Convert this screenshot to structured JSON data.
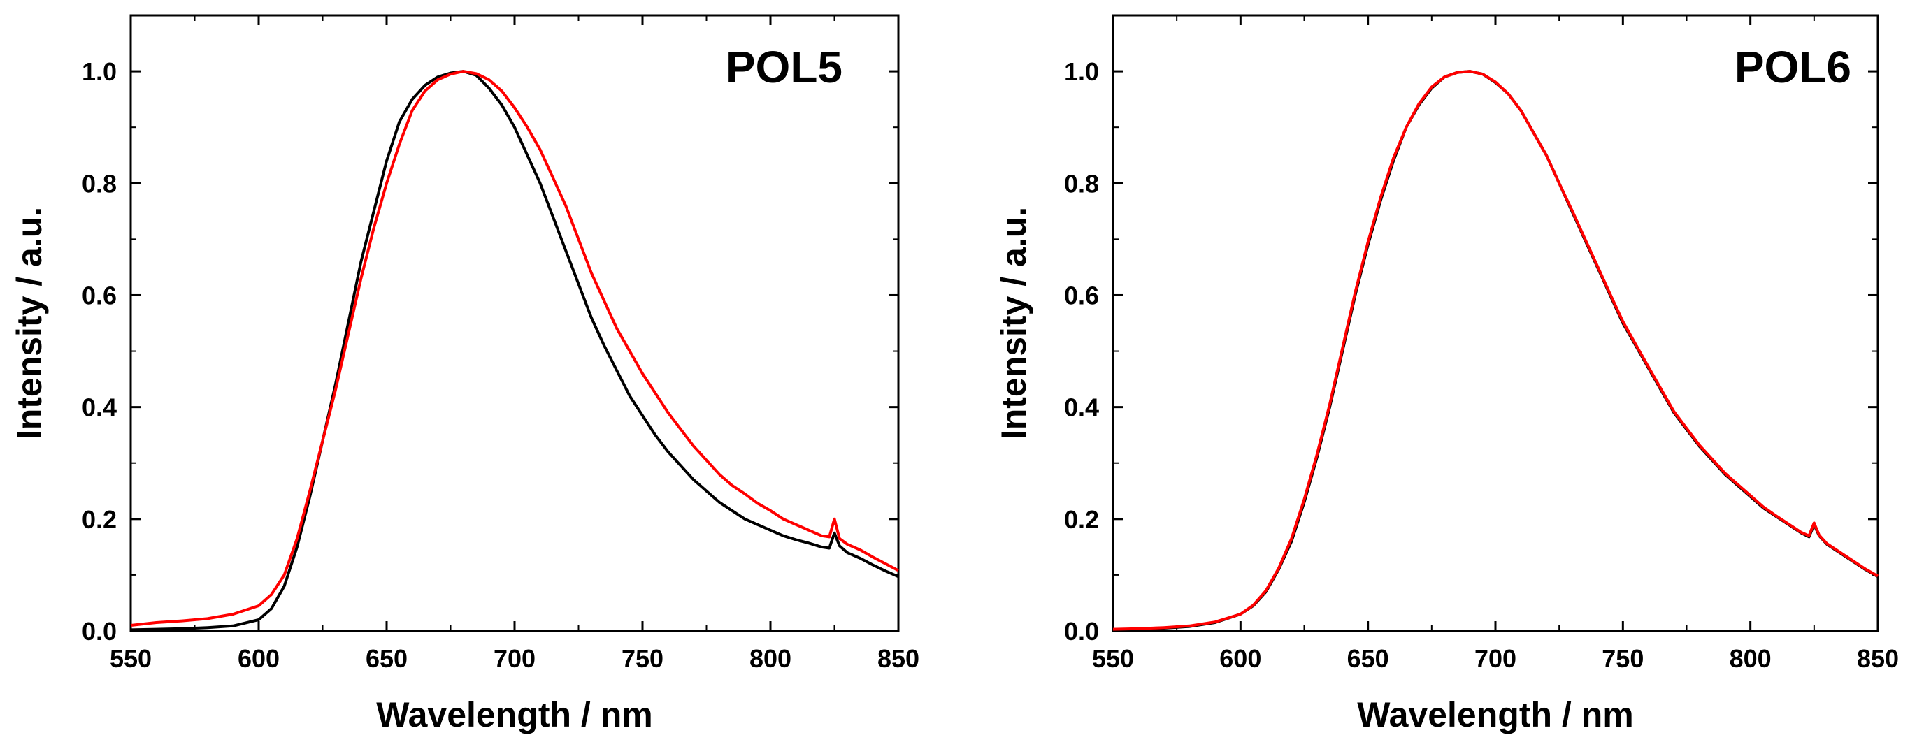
{
  "chart_data": [
    {
      "type": "line",
      "title": "POL5",
      "xlabel": "Wavelength / nm",
      "ylabel": "Intensity / a.u.",
      "xlim": [
        550,
        850
      ],
      "ylim": [
        0,
        1.1
      ],
      "xticks": [
        "550",
        "600",
        "650",
        "700",
        "750",
        "800",
        "850"
      ],
      "yticks": [
        "0.0",
        "0.2",
        "0.4",
        "0.6",
        "0.8",
        "1.0"
      ],
      "grid": false,
      "series": [
        {
          "name": "black",
          "color": "#000000",
          "x": [
            550,
            560,
            570,
            580,
            590,
            600,
            605,
            610,
            615,
            620,
            625,
            630,
            635,
            640,
            645,
            650,
            655,
            660,
            665,
            670,
            675,
            680,
            685,
            690,
            695,
            700,
            705,
            710,
            715,
            720,
            725,
            730,
            735,
            740,
            745,
            750,
            755,
            760,
            765,
            770,
            775,
            780,
            785,
            790,
            795,
            800,
            805,
            810,
            815,
            820,
            823,
            825,
            827,
            830,
            835,
            840,
            845,
            850
          ],
          "y": [
            0.002,
            0.003,
            0.004,
            0.006,
            0.009,
            0.02,
            0.04,
            0.08,
            0.15,
            0.24,
            0.34,
            0.44,
            0.55,
            0.66,
            0.75,
            0.84,
            0.91,
            0.95,
            0.975,
            0.99,
            0.997,
            1.0,
            0.993,
            0.97,
            0.94,
            0.9,
            0.85,
            0.8,
            0.74,
            0.68,
            0.62,
            0.56,
            0.51,
            0.465,
            0.42,
            0.385,
            0.35,
            0.32,
            0.295,
            0.27,
            0.25,
            0.23,
            0.215,
            0.2,
            0.19,
            0.18,
            0.17,
            0.163,
            0.157,
            0.15,
            0.148,
            0.175,
            0.152,
            0.14,
            0.13,
            0.118,
            0.107,
            0.097
          ]
        },
        {
          "name": "red",
          "color": "#ff0000",
          "x": [
            550,
            560,
            570,
            580,
            590,
            600,
            605,
            610,
            615,
            620,
            625,
            630,
            635,
            640,
            645,
            650,
            655,
            660,
            665,
            670,
            675,
            680,
            685,
            690,
            695,
            700,
            705,
            710,
            715,
            720,
            725,
            730,
            735,
            740,
            745,
            750,
            755,
            760,
            765,
            770,
            775,
            780,
            785,
            790,
            795,
            800,
            805,
            810,
            815,
            820,
            823,
            825,
            827,
            830,
            835,
            840,
            845,
            850
          ],
          "y": [
            0.01,
            0.015,
            0.018,
            0.022,
            0.03,
            0.045,
            0.065,
            0.1,
            0.165,
            0.25,
            0.34,
            0.43,
            0.53,
            0.63,
            0.72,
            0.8,
            0.87,
            0.93,
            0.965,
            0.985,
            0.995,
            1.0,
            0.996,
            0.985,
            0.965,
            0.935,
            0.9,
            0.86,
            0.81,
            0.76,
            0.7,
            0.64,
            0.59,
            0.54,
            0.5,
            0.46,
            0.425,
            0.39,
            0.36,
            0.33,
            0.305,
            0.28,
            0.26,
            0.245,
            0.228,
            0.215,
            0.2,
            0.19,
            0.18,
            0.17,
            0.168,
            0.2,
            0.165,
            0.155,
            0.145,
            0.132,
            0.12,
            0.108
          ]
        }
      ]
    },
    {
      "type": "line",
      "title": "POL6",
      "xlabel": "Wavelength / nm",
      "ylabel": "Intensity / a.u.",
      "xlim": [
        550,
        850
      ],
      "ylim": [
        0,
        1.1
      ],
      "xticks": [
        "550",
        "600",
        "650",
        "700",
        "750",
        "800",
        "850"
      ],
      "yticks": [
        "0.0",
        "0.2",
        "0.4",
        "0.6",
        "0.8",
        "1.0"
      ],
      "grid": false,
      "series": [
        {
          "name": "black",
          "color": "#000000",
          "x": [
            550,
            560,
            570,
            580,
            590,
            600,
            605,
            610,
            615,
            620,
            625,
            630,
            635,
            640,
            645,
            650,
            655,
            660,
            665,
            670,
            675,
            680,
            685,
            690,
            695,
            700,
            705,
            710,
            715,
            720,
            725,
            730,
            735,
            740,
            745,
            750,
            755,
            760,
            765,
            770,
            775,
            780,
            785,
            790,
            795,
            800,
            805,
            810,
            815,
            820,
            823,
            825,
            827,
            830,
            835,
            840,
            845,
            850
          ],
          "y": [
            0.002,
            0.003,
            0.005,
            0.008,
            0.015,
            0.03,
            0.045,
            0.07,
            0.11,
            0.16,
            0.23,
            0.31,
            0.4,
            0.5,
            0.6,
            0.69,
            0.77,
            0.84,
            0.9,
            0.94,
            0.97,
            0.99,
            0.998,
            1.0,
            0.995,
            0.98,
            0.96,
            0.93,
            0.89,
            0.85,
            0.8,
            0.75,
            0.7,
            0.65,
            0.6,
            0.55,
            0.51,
            0.47,
            0.43,
            0.39,
            0.36,
            0.33,
            0.305,
            0.28,
            0.26,
            0.24,
            0.22,
            0.205,
            0.19,
            0.175,
            0.168,
            0.19,
            0.17,
            0.155,
            0.14,
            0.125,
            0.11,
            0.097
          ]
        },
        {
          "name": "red",
          "color": "#ff0000",
          "x": [
            550,
            560,
            570,
            580,
            590,
            600,
            605,
            610,
            615,
            620,
            625,
            630,
            635,
            640,
            645,
            650,
            655,
            660,
            665,
            670,
            675,
            680,
            685,
            690,
            695,
            700,
            705,
            710,
            715,
            720,
            725,
            730,
            735,
            740,
            745,
            750,
            755,
            760,
            765,
            770,
            775,
            780,
            785,
            790,
            795,
            800,
            805,
            810,
            815,
            820,
            823,
            825,
            827,
            830,
            835,
            840,
            845,
            850
          ],
          "y": [
            0.003,
            0.004,
            0.006,
            0.009,
            0.016,
            0.03,
            0.046,
            0.072,
            0.112,
            0.165,
            0.235,
            0.315,
            0.405,
            0.505,
            0.605,
            0.695,
            0.775,
            0.845,
            0.9,
            0.942,
            0.972,
            0.99,
            0.998,
            1.0,
            0.995,
            0.981,
            0.96,
            0.93,
            0.89,
            0.85,
            0.8,
            0.752,
            0.702,
            0.652,
            0.602,
            0.553,
            0.512,
            0.472,
            0.432,
            0.392,
            0.362,
            0.332,
            0.307,
            0.282,
            0.262,
            0.242,
            0.222,
            0.206,
            0.191,
            0.176,
            0.17,
            0.193,
            0.171,
            0.156,
            0.141,
            0.126,
            0.111,
            0.098
          ]
        }
      ]
    }
  ]
}
